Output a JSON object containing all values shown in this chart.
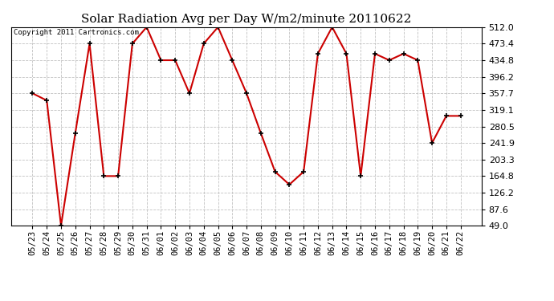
{
  "title": "Solar Radiation Avg per Day W/m2/minute 20110622",
  "copyright": "Copyright 2011 Cartronics.com",
  "dates": [
    "05/23",
    "05/24",
    "05/25",
    "05/26",
    "05/27",
    "05/28",
    "05/29",
    "05/30",
    "05/31",
    "06/01",
    "06/02",
    "06/03",
    "06/04",
    "06/05",
    "06/06",
    "06/07",
    "06/08",
    "06/09",
    "06/10",
    "06/11",
    "06/12",
    "06/13",
    "06/14",
    "06/15",
    "06/16",
    "06/17",
    "06/18",
    "06/19",
    "06/20",
    "06/21",
    "06/22"
  ],
  "values": [
    357.7,
    341.0,
    49.0,
    265.0,
    473.4,
    164.8,
    164.8,
    473.4,
    512.0,
    434.8,
    434.8,
    357.7,
    473.4,
    512.0,
    434.8,
    357.7,
    265.0,
    175.0,
    145.0,
    175.0,
    450.0,
    512.0,
    450.0,
    164.8,
    450.0,
    434.8,
    450.0,
    434.8,
    241.9,
    305.0,
    305.0
  ],
  "ylim": [
    49.0,
    512.0
  ],
  "yticks": [
    49.0,
    87.6,
    126.2,
    164.8,
    203.3,
    241.9,
    280.5,
    319.1,
    357.7,
    396.2,
    434.8,
    473.4,
    512.0
  ],
  "line_color": "#cc0000",
  "bg_color": "#ffffff",
  "grid_color": "#bbbbbb",
  "title_fontsize": 11,
  "copyright_fontsize": 6.5,
  "tick_fontsize": 7.5,
  "ytick_fontsize": 8
}
